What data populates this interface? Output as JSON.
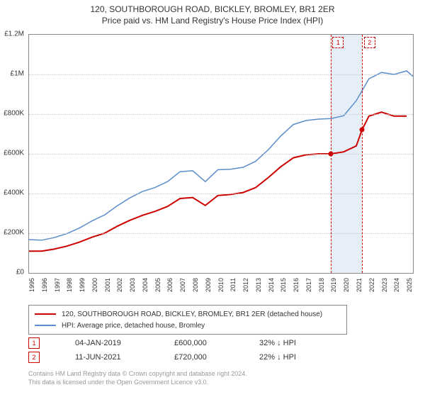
{
  "title_main": "120, SOUTHBOROUGH ROAD, BICKLEY, BROMLEY, BR1 2ER",
  "title_sub": "Price paid vs. HM Land Registry's House Price Index (HPI)",
  "chart": {
    "type": "line",
    "x_min": 1995,
    "x_max": 2025.5,
    "y_min": 0,
    "y_max": 1200000,
    "y_ticks": [
      0,
      200000,
      400000,
      600000,
      800000,
      1000000,
      1200000
    ],
    "y_tick_labels": [
      "£0",
      "£200K",
      "£400K",
      "£600K",
      "£800K",
      "£1M",
      "£1.2M"
    ],
    "x_ticks": [
      1995,
      1996,
      1997,
      1998,
      1999,
      2000,
      2001,
      2002,
      2003,
      2004,
      2005,
      2006,
      2007,
      2008,
      2009,
      2010,
      2011,
      2012,
      2013,
      2014,
      2015,
      2016,
      2017,
      2018,
      2019,
      2020,
      2021,
      2022,
      2023,
      2024,
      2025
    ],
    "grid_color": "#cccccc",
    "background_color": "#ffffff",
    "border_color": "#888888",
    "band": {
      "from": 2019.0,
      "to": 2021.45,
      "color": "#e6eef8"
    },
    "vlines": [
      {
        "x": 2019.0,
        "color": "#cc0000"
      },
      {
        "x": 2021.45,
        "color": "#cc0000"
      }
    ],
    "markers": [
      {
        "x": 2019.0,
        "y": 600000,
        "color": "#cc0000",
        "badge": "1",
        "badge_x": 2019.5,
        "badge_y": 1190000
      },
      {
        "x": 2021.45,
        "y": 720000,
        "color": "#cc0000",
        "badge": "2",
        "badge_x": 2022.0,
        "badge_y": 1190000
      }
    ],
    "series": [
      {
        "name": "price_paid",
        "label": "120, SOUTHBOROUGH ROAD, BICKLEY, BROMLEY, BR1 2ER (detached house)",
        "color": "#cc0000",
        "line_width": 2,
        "data": [
          [
            1995,
            110000
          ],
          [
            1996,
            110000
          ],
          [
            1997,
            120000
          ],
          [
            1998,
            135000
          ],
          [
            1999,
            155000
          ],
          [
            2000,
            180000
          ],
          [
            2001,
            200000
          ],
          [
            2002,
            235000
          ],
          [
            2003,
            265000
          ],
          [
            2004,
            290000
          ],
          [
            2005,
            310000
          ],
          [
            2006,
            335000
          ],
          [
            2007,
            375000
          ],
          [
            2008,
            380000
          ],
          [
            2009,
            340000
          ],
          [
            2010,
            390000
          ],
          [
            2011,
            395000
          ],
          [
            2012,
            405000
          ],
          [
            2013,
            430000
          ],
          [
            2014,
            480000
          ],
          [
            2015,
            535000
          ],
          [
            2016,
            580000
          ],
          [
            2017,
            595000
          ],
          [
            2018,
            600000
          ],
          [
            2019,
            600000
          ],
          [
            2020,
            610000
          ],
          [
            2021,
            640000
          ],
          [
            2021.45,
            720000
          ],
          [
            2022,
            790000
          ],
          [
            2023,
            810000
          ],
          [
            2024,
            790000
          ],
          [
            2025,
            790000
          ]
        ]
      },
      {
        "name": "hpi",
        "label": "HPI: Average price, detached house, Bromley",
        "color": "#5b8ecb",
        "line_width": 1.5,
        "data": [
          [
            1995,
            168000
          ],
          [
            1996,
            165000
          ],
          [
            1997,
            178000
          ],
          [
            1998,
            198000
          ],
          [
            1999,
            226000
          ],
          [
            2000,
            262000
          ],
          [
            2001,
            292000
          ],
          [
            2002,
            338000
          ],
          [
            2003,
            378000
          ],
          [
            2004,
            410000
          ],
          [
            2005,
            430000
          ],
          [
            2006,
            460000
          ],
          [
            2007,
            510000
          ],
          [
            2008,
            515000
          ],
          [
            2009,
            460000
          ],
          [
            2010,
            520000
          ],
          [
            2011,
            522000
          ],
          [
            2012,
            532000
          ],
          [
            2013,
            562000
          ],
          [
            2014,
            620000
          ],
          [
            2015,
            690000
          ],
          [
            2016,
            748000
          ],
          [
            2017,
            768000
          ],
          [
            2018,
            775000
          ],
          [
            2019,
            778000
          ],
          [
            2020,
            792000
          ],
          [
            2021,
            868000
          ],
          [
            2022,
            978000
          ],
          [
            2023,
            1010000
          ],
          [
            2024,
            1000000
          ],
          [
            2025,
            1018000
          ],
          [
            2025.5,
            990000
          ]
        ]
      }
    ]
  },
  "legend": {
    "rows": [
      {
        "color": "#cc0000",
        "label": "120, SOUTHBOROUGH ROAD, BICKLEY, BROMLEY, BR1 2ER (detached house)"
      },
      {
        "color": "#5b8ecb",
        "label": "HPI: Average price, detached house, Bromley"
      }
    ]
  },
  "transactions": [
    {
      "badge": "1",
      "date": "04-JAN-2019",
      "price": "£600,000",
      "delta": "32% ↓ HPI"
    },
    {
      "badge": "2",
      "date": "11-JUN-2021",
      "price": "£720,000",
      "delta": "22% ↓ HPI"
    }
  ],
  "footer_line1": "Contains HM Land Registry data © Crown copyright and database right 2024.",
  "footer_line2": "This data is licensed under the Open Government Licence v3.0."
}
